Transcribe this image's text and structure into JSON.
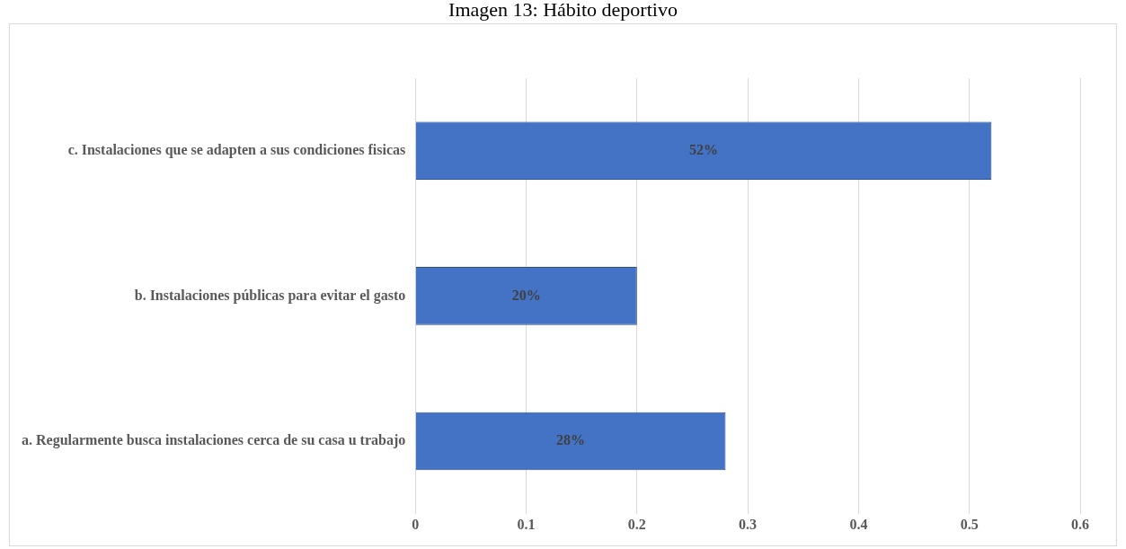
{
  "chart_data": {
    "type": "bar",
    "orientation": "horizontal",
    "title": "Imagen 13: Hábito deportivo",
    "categories": [
      "c. Instalaciones que se adapten a sus condiciones fisicas",
      "b. Instalaciones públicas para evitar el gasto",
      "a. Regularmente busca instalaciones cerca de su casa u trabajo"
    ],
    "values": [
      0.52,
      0.2,
      0.28
    ],
    "value_labels": [
      "52%",
      "20%",
      "28%"
    ],
    "color": "#4472c4",
    "xlim": [
      0,
      0.6
    ],
    "xticks": [
      0,
      0.1,
      0.2,
      0.3,
      0.4,
      0.5,
      0.6
    ],
    "grid": "x"
  }
}
